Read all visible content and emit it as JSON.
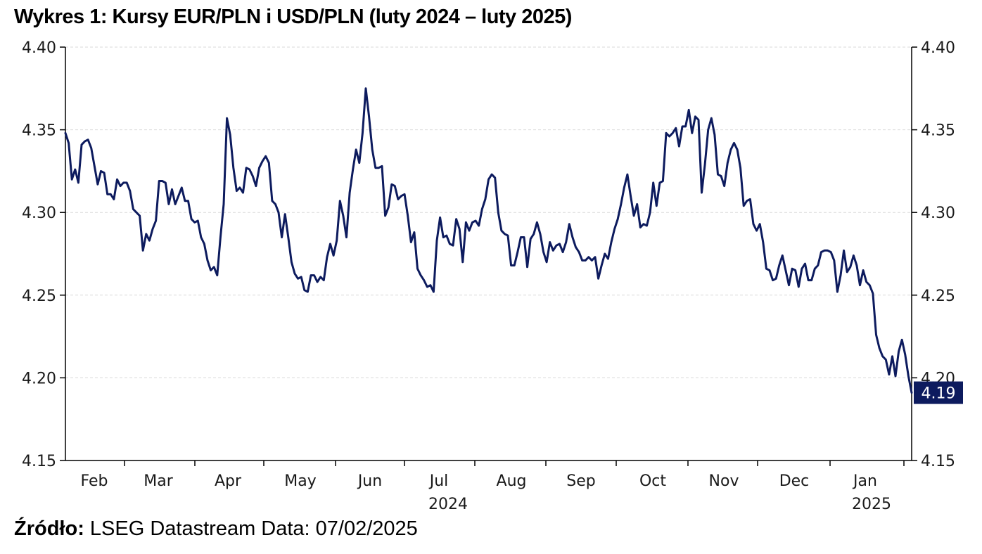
{
  "title": "Wykres 1: Kursy EUR/PLN i USD/PLN (luty 2024 – luty 2025)",
  "source": {
    "label": "Źródło:",
    "text": "LSEG Datastream Data: 07/02/2025"
  },
  "colors": {
    "line": "#0d1b5e",
    "grid": "#d9d9d9",
    "axis": "#000000",
    "last_badge": "#0d1b5e"
  },
  "chart_data": {
    "type": "line",
    "title": "",
    "xlabel": "",
    "ylabel": "",
    "ylim": [
      4.15,
      4.4
    ],
    "yticks": [
      4.15,
      4.2,
      4.25,
      4.3,
      4.35,
      4.4
    ],
    "ytick_labels": [
      "4.15",
      "4.20",
      "4.25",
      "4.30",
      "4.35",
      "4.40"
    ],
    "grid": "horizontal dashed",
    "month_labels": [
      "Feb",
      "Mar",
      "Apr",
      "May",
      "Jun",
      "Jul",
      "Aug",
      "Sep",
      "Oct",
      "Nov",
      "Dec",
      "Jan"
    ],
    "year_labels": [
      {
        "label": "2024",
        "under": "Jul"
      },
      {
        "label": "2025",
        "under": "Jan"
      }
    ],
    "last_value_label": "4.19",
    "series": [
      {
        "values": [
          4.348,
          4.342,
          4.32,
          4.326,
          4.318,
          4.341,
          4.343,
          4.344,
          4.339,
          4.328,
          4.317,
          4.325,
          4.324,
          4.311,
          4.311,
          4.308,
          4.32,
          4.316,
          4.318,
          4.318,
          4.313,
          4.302,
          4.3,
          4.298,
          4.277,
          4.287,
          4.283,
          4.29,
          4.295,
          4.319,
          4.319,
          4.318,
          4.305,
          4.314,
          4.305,
          4.31,
          4.315,
          4.307,
          4.307,
          4.296,
          4.294,
          4.295,
          4.285,
          4.281,
          4.271,
          4.265,
          4.267,
          4.262,
          4.285,
          4.305,
          4.357,
          4.347,
          4.327,
          4.313,
          4.315,
          4.312,
          4.327,
          4.326,
          4.322,
          4.316,
          4.327,
          4.331,
          4.334,
          4.33,
          4.307,
          4.305,
          4.3,
          4.285,
          4.299,
          4.285,
          4.27,
          4.263,
          4.26,
          4.261,
          4.253,
          4.252,
          4.262,
          4.262,
          4.258,
          4.261,
          4.259,
          4.273,
          4.281,
          4.274,
          4.283,
          4.307,
          4.298,
          4.285,
          4.312,
          4.326,
          4.338,
          4.33,
          4.348,
          4.375,
          4.358,
          4.338,
          4.327,
          4.327,
          4.328,
          4.298,
          4.303,
          4.317,
          4.316,
          4.308,
          4.31,
          4.311,
          4.298,
          4.282,
          4.288,
          4.266,
          4.262,
          4.259,
          4.255,
          4.256,
          4.252,
          4.283,
          4.297,
          4.285,
          4.286,
          4.281,
          4.28,
          4.296,
          4.29,
          4.27,
          4.294,
          4.289,
          4.294,
          4.295,
          4.292,
          4.302,
          4.308,
          4.32,
          4.323,
          4.321,
          4.3,
          4.289,
          4.287,
          4.286,
          4.268,
          4.268,
          4.276,
          4.285,
          4.285,
          4.267,
          4.284,
          4.287,
          4.294,
          4.287,
          4.276,
          4.27,
          4.282,
          4.277,
          4.28,
          4.281,
          4.276,
          4.282,
          4.293,
          4.285,
          4.279,
          4.276,
          4.271,
          4.271,
          4.273,
          4.271,
          4.273,
          4.26,
          4.268,
          4.275,
          4.272,
          4.282,
          4.29,
          4.296,
          4.305,
          4.315,
          4.323,
          4.31,
          4.298,
          4.305,
          4.291,
          4.293,
          4.292,
          4.3,
          4.318,
          4.304,
          4.318,
          4.319,
          4.348,
          4.346,
          4.348,
          4.351,
          4.34,
          4.352,
          4.352,
          4.362,
          4.348,
          4.358,
          4.356,
          4.312,
          4.329,
          4.35,
          4.357,
          4.347,
          4.323,
          4.322,
          4.316,
          4.33,
          4.338,
          4.342,
          4.338,
          4.327,
          4.304,
          4.307,
          4.308,
          4.293,
          4.289,
          4.293,
          4.282,
          4.266,
          4.265,
          4.259,
          4.26,
          4.268,
          4.274,
          4.265,
          4.256,
          4.266,
          4.265,
          4.255,
          4.266,
          4.269,
          4.259,
          4.259,
          4.266,
          4.268,
          4.276,
          4.277,
          4.277,
          4.276,
          4.271,
          4.252,
          4.262,
          4.277,
          4.264,
          4.267,
          4.274,
          4.268,
          4.256,
          4.265,
          4.258,
          4.256,
          4.251,
          4.226,
          4.218,
          4.213,
          4.211,
          4.202,
          4.213,
          4.201,
          4.216,
          4.223,
          4.214,
          4.201,
          4.191
        ]
      }
    ]
  }
}
